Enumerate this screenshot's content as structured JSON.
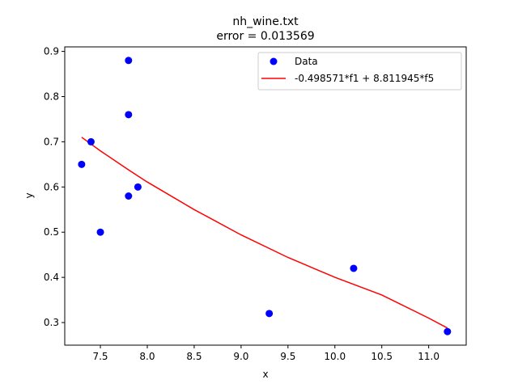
{
  "chart_data": {
    "type": "scatter",
    "title": "nh_wine.txt",
    "subtitle": "error  = 0.013569",
    "xlabel": "x",
    "ylabel": "y",
    "xlim": [
      7.12,
      11.4
    ],
    "ylim": [
      0.25,
      0.91
    ],
    "xticks": [
      "7.5",
      "8.0",
      "8.5",
      "9.0",
      "9.5",
      "10.0",
      "10.5",
      "11.0"
    ],
    "yticks": [
      "0.3",
      "0.4",
      "0.5",
      "0.6",
      "0.7",
      "0.8",
      "0.9"
    ],
    "grid": false,
    "legend_position": "top-right",
    "series": [
      {
        "name": "Data",
        "kind": "scatter",
        "color": "#0000ff",
        "points": [
          {
            "x": 7.3,
            "y": 0.65
          },
          {
            "x": 7.4,
            "y": 0.7
          },
          {
            "x": 7.5,
            "y": 0.5
          },
          {
            "x": 7.8,
            "y": 0.88
          },
          {
            "x": 7.8,
            "y": 0.76
          },
          {
            "x": 7.8,
            "y": 0.58
          },
          {
            "x": 7.9,
            "y": 0.6
          },
          {
            "x": 9.3,
            "y": 0.32
          },
          {
            "x": 10.2,
            "y": 0.42
          },
          {
            "x": 11.2,
            "y": 0.28
          }
        ]
      },
      {
        "name": "-0.498571*f1 + 8.811945*f5",
        "kind": "line",
        "color": "#ff0000",
        "points": [
          {
            "x": 7.3,
            "y": 0.71
          },
          {
            "x": 7.5,
            "y": 0.68
          },
          {
            "x": 7.8,
            "y": 0.638
          },
          {
            "x": 8.0,
            "y": 0.611
          },
          {
            "x": 8.5,
            "y": 0.55
          },
          {
            "x": 9.0,
            "y": 0.494
          },
          {
            "x": 9.5,
            "y": 0.444
          },
          {
            "x": 10.0,
            "y": 0.4
          },
          {
            "x": 10.5,
            "y": 0.361
          },
          {
            "x": 11.0,
            "y": 0.31
          },
          {
            "x": 11.2,
            "y": 0.288
          }
        ]
      }
    ]
  }
}
